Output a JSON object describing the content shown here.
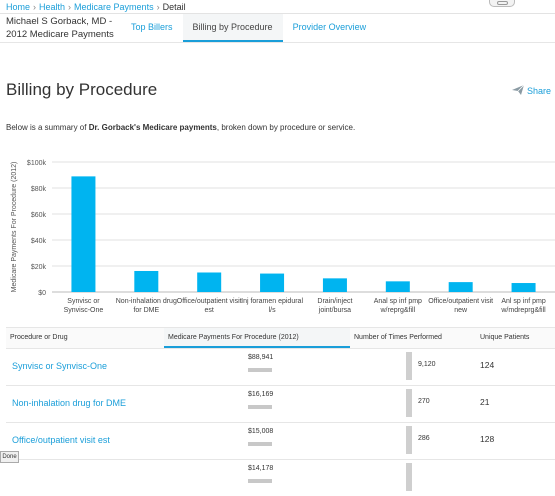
{
  "breadcrumb": {
    "home": "Home",
    "health": "Health",
    "payments": "Medicare Payments",
    "current": "Detail",
    "separator": "›"
  },
  "header": {
    "doctor_line1": "Michael S Gorback, MD -",
    "doctor_line2": "2012 Medicare Payments",
    "tabs": [
      {
        "label": "Top Billers",
        "active": false
      },
      {
        "label": "Billing by Procedure",
        "active": true
      },
      {
        "label": "Provider Overview",
        "active": false
      }
    ]
  },
  "page": {
    "title": "Billing by Procedure",
    "share_label": "Share",
    "summary_prefix": "Below is a summary of ",
    "summary_bold": "Dr. Gorback's Medicare payments",
    "summary_suffix": ", broken down by procedure or service."
  },
  "colors": {
    "accent": "#1a9ed9",
    "bar": "#00b4f0",
    "grey_bar": "#c8c8c8"
  },
  "chart_data": {
    "type": "bar",
    "title": "",
    "xlabel": "",
    "ylabel": "Medicare Payments For Procedure (2012)",
    "ylim": [
      0,
      100000
    ],
    "yticks": [
      "$0",
      "$20k",
      "$40k",
      "$60k",
      "$80k",
      "$100k"
    ],
    "grid": true,
    "categories": [
      [
        "Synvisc or",
        "Synvisc-One"
      ],
      [
        "Non-inhalation drug",
        "for DME"
      ],
      [
        "Office/outpatient visit",
        "est"
      ],
      [
        "Inj foramen epidural",
        "l/s"
      ],
      [
        "Drain/inject",
        "joint/bursa"
      ],
      [
        "Anal sp inf pmp",
        "w/reprg&fill"
      ],
      [
        "Office/outpatient visit",
        "new"
      ],
      [
        "Anl sp inf pmp",
        "w/mdreprg&fill"
      ]
    ],
    "values": [
      88941,
      16169,
      15008,
      14178,
      10500,
      8200,
      7600,
      6900
    ]
  },
  "table": {
    "headers": {
      "procedure": "Procedure or Drug",
      "payments": "Medicare Payments For Procedure (2012)",
      "times": "Number of Times Performed",
      "patients": "Unique Patients"
    },
    "rows": [
      {
        "procedure": "Synvisc or Synvisc-One",
        "payment": "$88,941",
        "payment_value": 88941,
        "times": "9,120",
        "times_value": 9120,
        "patients": "124"
      },
      {
        "procedure": "Non-inhalation drug for DME",
        "payment": "$16,169",
        "payment_value": 16169,
        "times": "270",
        "times_value": 270,
        "patients": "21"
      },
      {
        "procedure": "Office/outpatient visit est",
        "payment": "$15,008",
        "payment_value": 15008,
        "times": "286",
        "times_value": 286,
        "patients": "128"
      },
      {
        "procedure": "",
        "payment": "$14,178",
        "payment_value": 14178,
        "times": "",
        "times_value": null,
        "patients": ""
      }
    ]
  },
  "done_label": "Done"
}
